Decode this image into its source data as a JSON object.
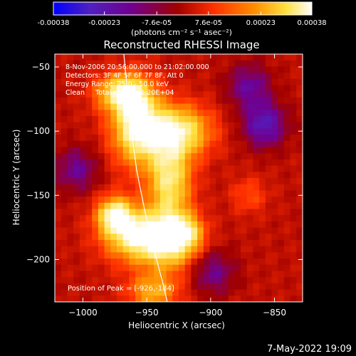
{
  "chart_data": {
    "type": "heatmap",
    "title": "Reconstructed RHESSI Image",
    "xlabel": "Heliocentric X (arcsec)",
    "ylabel": "Heliocentric Y (arcsec)",
    "xlim": [
      -1022,
      -828
    ],
    "ylim": [
      -233,
      -40
    ],
    "x_ticks": [
      -1000,
      -950,
      -900,
      -850
    ],
    "y_ticks": [
      -50,
      -100,
      -150,
      -200
    ],
    "colorbar": {
      "min": -0.00038,
      "max": 0.00038,
      "tick_values": [
        -0.00038,
        -0.00023,
        -7.6e-05,
        7.6e-05,
        0.00023,
        0.00038
      ],
      "tick_labels": [
        "-0.00038",
        "-0.00023",
        "-7.6e-05",
        "7.6e-05",
        "0.00023",
        "0.00038"
      ],
      "unit_label": "(photons cm⁻² s⁻¹ asec⁻²)",
      "colors": [
        "#0000ff",
        "#5020c0",
        "#700090",
        "#a00000",
        "#ff3000",
        "#ff9000",
        "#ffe040",
        "#ffffff"
      ]
    },
    "annotations": {
      "time_range": "8-Nov-2006 20:56:00.000 to 21:02:00.000",
      "detectors": "Detectors: 3F 4F 5F 6F 7F 8F, Att 0",
      "energy": "Energy Range: 25.0 - 50.0 keV",
      "clean": "Clean     Total counts: 1.20E+04",
      "peak": "Position of Peak = [-926,-184]"
    },
    "limb_curve": [
      [
        -968,
        -40
      ],
      [
        -965,
        -70
      ],
      [
        -962,
        -100
      ],
      [
        -958,
        -130
      ],
      [
        -952,
        -160
      ],
      [
        -945,
        -190
      ],
      [
        -937,
        -220
      ],
      [
        -934,
        -233
      ]
    ],
    "emission_sources": [
      {
        "x": -958,
        "y": -95,
        "peak": 0.00038,
        "sx": 14,
        "sy": 22
      },
      {
        "x": -970,
        "y": -70,
        "peak": 0.0003,
        "sx": 14,
        "sy": 10
      },
      {
        "x": -925,
        "y": -100,
        "peak": 0.00034,
        "sx": 18,
        "sy": 14
      },
      {
        "x": -932,
        "y": -138,
        "peak": 0.00032,
        "sx": 12,
        "sy": 20
      },
      {
        "x": -958,
        "y": -182,
        "peak": 0.00036,
        "sx": 18,
        "sy": 14
      },
      {
        "x": -975,
        "y": -165,
        "peak": 0.00034,
        "sx": 10,
        "sy": 10
      },
      {
        "x": -932,
        "y": -185,
        "peak": 0.00032,
        "sx": 14,
        "sy": 16
      },
      {
        "x": -918,
        "y": -180,
        "peak": 0.0002,
        "sx": 10,
        "sy": 10
      },
      {
        "x": -945,
        "y": -225,
        "peak": 0.00022,
        "sx": 14,
        "sy": 10
      },
      {
        "x": -870,
        "y": -150,
        "peak": 0.0001,
        "sx": 10,
        "sy": 10
      }
    ],
    "negative_sources": [
      {
        "x": -858,
        "y": -95,
        "peak": -0.00022
      },
      {
        "x": -1005,
        "y": -130,
        "peak": -0.00015
      },
      {
        "x": -898,
        "y": -210,
        "peak": -0.00014
      },
      {
        "x": -870,
        "y": -65,
        "peak": -0.00016
      }
    ]
  },
  "footer": {
    "timestamp": "7-May-2022 19:09"
  }
}
